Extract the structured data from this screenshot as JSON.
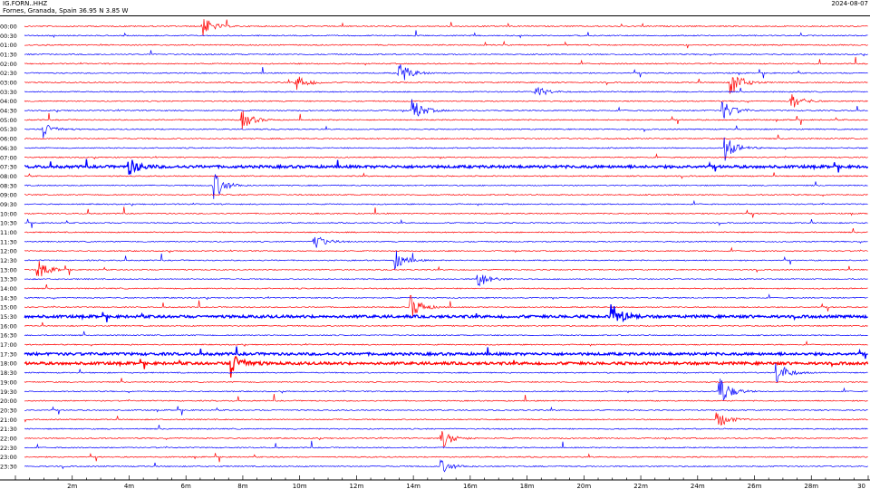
{
  "header": {
    "station": "IG.FORN..HHZ",
    "location": "Fornes, Granada, Spain  36.95 N 3.85 W",
    "date": "2024-08-07"
  },
  "colors": {
    "red": "#ff0000",
    "blue": "#0000ff",
    "axis": "#000000"
  },
  "rows": [
    {
      "label": "00:00",
      "color": "red"
    },
    {
      "label": "00:30",
      "color": "blue"
    },
    {
      "label": "01:00",
      "color": "red"
    },
    {
      "label": "01:30",
      "color": "blue"
    },
    {
      "label": "02:00",
      "color": "red"
    },
    {
      "label": "02:30",
      "color": "blue"
    },
    {
      "label": "03:00",
      "color": "red"
    },
    {
      "label": "03:30",
      "color": "blue"
    },
    {
      "label": "04:00",
      "color": "red"
    },
    {
      "label": "04:30",
      "color": "blue"
    },
    {
      "label": "05:00",
      "color": "red"
    },
    {
      "label": "05:30",
      "color": "blue"
    },
    {
      "label": "06:00",
      "color": "red"
    },
    {
      "label": "06:30",
      "color": "blue"
    },
    {
      "label": "07:00",
      "color": "red"
    },
    {
      "label": "07:30",
      "color": "blue"
    },
    {
      "label": "08:00",
      "color": "red"
    },
    {
      "label": "08:30",
      "color": "blue"
    },
    {
      "label": "09:00",
      "color": "red"
    },
    {
      "label": "09:30",
      "color": "blue"
    },
    {
      "label": "10:00",
      "color": "red"
    },
    {
      "label": "10:30",
      "color": "blue"
    },
    {
      "label": "11:00",
      "color": "red"
    },
    {
      "label": "11:30",
      "color": "blue"
    },
    {
      "label": "12:00",
      "color": "red"
    },
    {
      "label": "12:30",
      "color": "blue"
    },
    {
      "label": "13:00",
      "color": "red"
    },
    {
      "label": "13:30",
      "color": "blue"
    },
    {
      "label": "14:00",
      "color": "red"
    },
    {
      "label": "14:30",
      "color": "blue"
    },
    {
      "label": "15:00",
      "color": "red"
    },
    {
      "label": "15:30",
      "color": "blue"
    },
    {
      "label": "16:00",
      "color": "red"
    },
    {
      "label": "16:30",
      "color": "blue"
    },
    {
      "label": "17:00",
      "color": "red"
    },
    {
      "label": "17:30",
      "color": "blue"
    },
    {
      "label": "18:00",
      "color": "red"
    },
    {
      "label": "18:30",
      "color": "blue"
    },
    {
      "label": "19:00",
      "color": "red"
    },
    {
      "label": "19:30",
      "color": "blue"
    },
    {
      "label": "20:00",
      "color": "red"
    },
    {
      "label": "20:30",
      "color": "blue"
    },
    {
      "label": "21:00",
      "color": "red"
    },
    {
      "label": "21:30",
      "color": "blue"
    },
    {
      "label": "22:00",
      "color": "red"
    },
    {
      "label": "22:30",
      "color": "blue"
    },
    {
      "label": "23:00",
      "color": "red"
    },
    {
      "label": "23:30",
      "color": "blue"
    }
  ],
  "x_axis": {
    "ticks": [
      "2m",
      "4m",
      "6m",
      "8m",
      "10m",
      "12m",
      "14m",
      "16m",
      "18m",
      "20m",
      "22m",
      "24m",
      "26m",
      "28m",
      "30"
    ],
    "range_minutes": [
      0,
      30
    ]
  },
  "events": [
    {
      "row": "00:00",
      "minute": 6.6,
      "amp": 1.2
    },
    {
      "row": "02:30",
      "minute": 13.5,
      "amp": 1.5
    },
    {
      "row": "03:00",
      "minute": 9.9,
      "amp": 1.0
    },
    {
      "row": "03:00",
      "minute": 25.2,
      "amp": 1.6
    },
    {
      "row": "03:30",
      "minute": 18.3,
      "amp": 0.8
    },
    {
      "row": "04:00",
      "minute": 27.3,
      "amp": 1.0
    },
    {
      "row": "04:30",
      "minute": 14.0,
      "amp": 1.4
    },
    {
      "row": "04:30",
      "minute": 24.9,
      "amp": 1.2
    },
    {
      "row": "05:00",
      "minute": 8.0,
      "amp": 1.1
    },
    {
      "row": "05:30",
      "minute": 1.0,
      "amp": 1.0
    },
    {
      "row": "06:30",
      "minute": 25.0,
      "amp": 1.5
    },
    {
      "row": "07:30",
      "minute": 4.0,
      "amp": 1.0
    },
    {
      "row": "08:30",
      "minute": 7.0,
      "amp": 1.7
    },
    {
      "row": "11:30",
      "minute": 10.5,
      "amp": 1.1
    },
    {
      "row": "12:30",
      "minute": 13.4,
      "amp": 1.1
    },
    {
      "row": "13:00",
      "minute": 0.8,
      "amp": 1.2
    },
    {
      "row": "13:30",
      "minute": 16.3,
      "amp": 1.0
    },
    {
      "row": "15:00",
      "minute": 13.9,
      "amp": 1.6
    },
    {
      "row": "15:30",
      "minute": 21.0,
      "amp": 1.4
    },
    {
      "row": "18:00",
      "minute": 7.6,
      "amp": 1.6
    },
    {
      "row": "18:30",
      "minute": 26.8,
      "amp": 1.4
    },
    {
      "row": "19:30",
      "minute": 24.8,
      "amp": 1.8
    },
    {
      "row": "21:00",
      "minute": 24.7,
      "amp": 1.1
    },
    {
      "row": "22:00",
      "minute": 15.0,
      "amp": 1.2
    },
    {
      "row": "23:30",
      "minute": 15.0,
      "amp": 0.8
    }
  ],
  "continuous_rows": [
    "07:30",
    "15:30",
    "17:30",
    "18:00"
  ]
}
